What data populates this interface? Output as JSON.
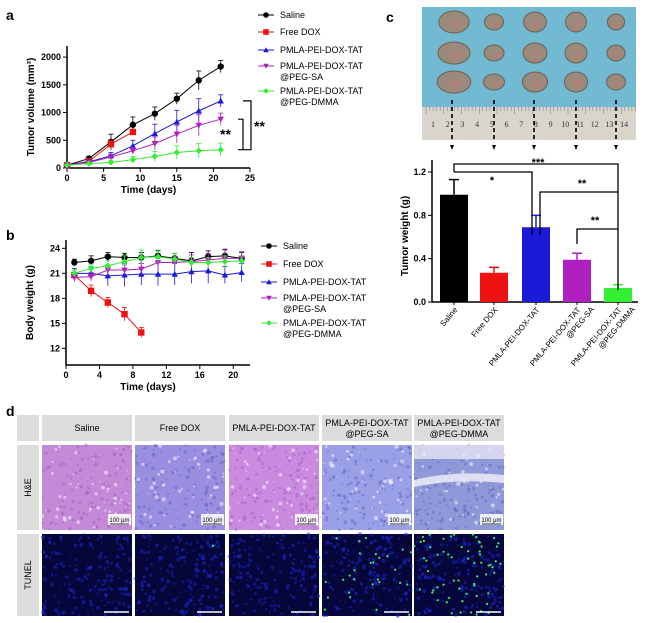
{
  "panel_labels": {
    "a": "a",
    "b": "b",
    "c": "c",
    "d": "d"
  },
  "legend": [
    "Saline",
    "Free DOX",
    "PMLA-PEI-DOX-TAT",
    [
      "PMLA-PEI-DOX-TAT",
      "@PEG-SA"
    ],
    [
      "PMLA-PEI-DOX-TAT",
      "@PEG-DMMA"
    ]
  ],
  "colors": {
    "Saline": "#000000",
    "Free DOX": "#ee1111",
    "PMLA-PEI-DOX-TAT": "#1a1ad8",
    "@PEG-SA": "#b020c0",
    "@PEG-DMMA": "#33ee33"
  },
  "chart_data": [
    {
      "id": "a",
      "type": "line",
      "xlabel": "Time (days)",
      "ylabel": "Tumor volume (mm³)",
      "xlim": [
        0,
        25
      ],
      "xticks": [
        0,
        5,
        10,
        15,
        20,
        25
      ],
      "ylim": [
        0,
        2200
      ],
      "yticks": [
        0,
        500,
        1000,
        1500,
        2000
      ],
      "legend_position": "right",
      "series": [
        {
          "name": "Saline",
          "marker": "circle",
          "x": [
            0,
            3,
            6,
            9,
            12,
            15,
            18,
            21
          ],
          "y": [
            50,
            170,
            470,
            780,
            980,
            1250,
            1580,
            1830
          ],
          "err": [
            20,
            40,
            140,
            140,
            120,
            100,
            170,
            110
          ]
        },
        {
          "name": "Free DOX",
          "marker": "square",
          "x": [
            0,
            3,
            6,
            9
          ],
          "y": [
            50,
            120,
            430,
            650
          ],
          "err": [
            20,
            30,
            60,
            40
          ]
        },
        {
          "name": "PMLA-PEI-DOX-TAT",
          "marker": "triangle-up",
          "x": [
            0,
            3,
            6,
            9,
            12,
            15,
            18,
            21
          ],
          "y": [
            50,
            110,
            220,
            400,
            620,
            830,
            1030,
            1210
          ],
          "err": [
            20,
            30,
            60,
            100,
            170,
            210,
            220,
            110
          ]
        },
        {
          "name": "PMLA-PEI-DOX-TAT @PEG-SA",
          "marker": "triangle-down",
          "x": [
            0,
            3,
            6,
            9,
            12,
            15,
            18,
            21
          ],
          "y": [
            50,
            100,
            200,
            310,
            440,
            610,
            770,
            880
          ],
          "err": [
            20,
            30,
            50,
            60,
            120,
            160,
            190,
            110
          ]
        },
        {
          "name": "PMLA-PEI-DOX-TAT @PEG-DMMA",
          "marker": "diamond",
          "x": [
            0,
            3,
            6,
            9,
            12,
            15,
            18,
            21
          ],
          "y": [
            50,
            80,
            100,
            150,
            210,
            280,
            310,
            330
          ],
          "err": [
            20,
            30,
            40,
            60,
            90,
            120,
            130,
            120
          ]
        }
      ],
      "annotations": [
        "**",
        "**"
      ]
    },
    {
      "id": "b",
      "type": "line",
      "xlabel": "Time (days)",
      "ylabel": "Body weight (g)",
      "xlim": [
        0,
        22
      ],
      "xticks": [
        0,
        4,
        8,
        12,
        16,
        20
      ],
      "ylim": [
        10,
        25
      ],
      "yticks": [
        12,
        15,
        18,
        21,
        24
      ],
      "legend_position": "right",
      "series": [
        {
          "name": "Saline",
          "marker": "circle",
          "x": [
            1,
            3,
            5,
            7,
            9,
            11,
            13,
            15,
            17,
            19,
            21
          ],
          "y": [
            22.3,
            22.5,
            23.0,
            22.9,
            22.9,
            23.1,
            22.8,
            22.5,
            23.0,
            23.1,
            22.8
          ],
          "err": [
            0.4,
            0.6,
            0.5,
            0.5,
            0.6,
            0.6,
            0.6,
            1.0,
            0.7,
            0.8,
            0.7
          ]
        },
        {
          "name": "Free DOX",
          "marker": "square",
          "x": [
            1,
            3,
            5,
            7,
            9
          ],
          "y": [
            20.8,
            18.9,
            17.5,
            16.1,
            13.9
          ],
          "err": [
            0.6,
            0.7,
            0.6,
            0.8,
            0.6
          ]
        },
        {
          "name": "PMLA-PEI-DOX-TAT",
          "marker": "triangle-up",
          "x": [
            1,
            3,
            5,
            7,
            9,
            11,
            13,
            15,
            17,
            19,
            21
          ],
          "y": [
            21.0,
            21.0,
            20.7,
            20.8,
            20.9,
            20.9,
            20.9,
            21.2,
            21.3,
            20.8,
            21.1
          ],
          "err": [
            0.6,
            0.8,
            1.2,
            1.4,
            1.3,
            1.4,
            1.3,
            1.4,
            1.5,
            1.0,
            1.1
          ]
        },
        {
          "name": "PMLA-PEI-DOX-TAT @PEG-SA",
          "marker": "triangle-down",
          "x": [
            1,
            3,
            5,
            7,
            9,
            11,
            13,
            15,
            17,
            19,
            21
          ],
          "y": [
            20.5,
            20.6,
            21.4,
            21.4,
            21.5,
            22.3,
            22.3,
            22.4,
            22.6,
            22.8,
            22.8
          ],
          "err": [
            0.5,
            0.5,
            0.6,
            0.6,
            0.7,
            0.7,
            0.7,
            0.8,
            0.8,
            1.0,
            0.8
          ]
        },
        {
          "name": "PMLA-PEI-DOX-TAT @PEG-DMMA",
          "marker": "diamond",
          "x": [
            1,
            3,
            5,
            7,
            9,
            11,
            13,
            15,
            17,
            19,
            21
          ],
          "y": [
            21.0,
            21.6,
            21.9,
            22.4,
            22.9,
            23.0,
            22.7,
            22.3,
            22.3,
            22.4,
            22.5
          ],
          "err": [
            0.4,
            0.5,
            0.6,
            0.7,
            0.9,
            0.8,
            0.7,
            0.6,
            0.6,
            0.7,
            0.6
          ]
        }
      ]
    },
    {
      "id": "c",
      "type": "bar",
      "ylabel": "Tumor weight (g)",
      "ylim": [
        0,
        1.3
      ],
      "yticks": [
        0.0,
        0.4,
        0.8,
        1.2
      ],
      "categories": [
        [
          "Saline"
        ],
        [
          "Free DOX"
        ],
        [
          "PMLA-PEI-DOX-TAT"
        ],
        [
          "PMLA-PEI-DOX-TAT",
          "@PEG-SA"
        ],
        [
          "PMLA-PEI-DOX-TAT",
          "@PEG-DMMA"
        ]
      ],
      "values": [
        0.99,
        0.27,
        0.69,
        0.39,
        0.13
      ],
      "err": [
        0.14,
        0.05,
        0.11,
        0.06,
        0.03
      ],
      "bar_colors": [
        "#000000",
        "#ee1111",
        "#1a1ad8",
        "#b020c0",
        "#33ee33"
      ],
      "annotations": [
        "***",
        "*",
        "**",
        "**"
      ]
    }
  ],
  "photo": {
    "ruler_labels": [
      "1",
      "2",
      "3",
      "4",
      "5",
      "6",
      "7",
      "8",
      "9",
      "10",
      "11",
      "12",
      "13",
      "14"
    ]
  },
  "histology": {
    "columns": [
      [
        "Saline"
      ],
      [
        "Free DOX"
      ],
      [
        "PMLA-PEI-DOX-TAT"
      ],
      [
        "PMLA-PEI-DOX-TAT",
        "@PEG-SA"
      ],
      [
        "PMLA-PEI-DOX-TAT",
        "@PEG-DMMA"
      ]
    ],
    "rows": [
      "H&E",
      "TUNEL"
    ],
    "scale_bar": "100 μm",
    "tunel_positive_level": [
      0.0,
      0.02,
      0.0,
      0.4,
      0.9
    ]
  }
}
